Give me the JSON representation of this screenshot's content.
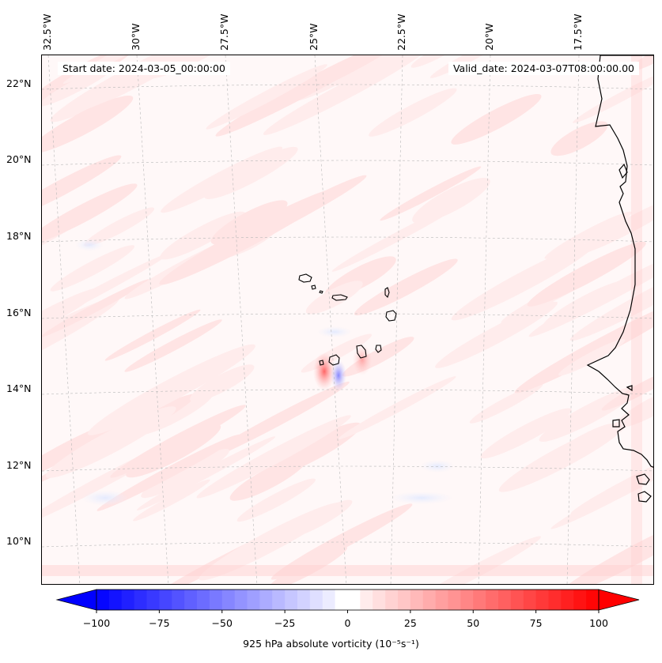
{
  "map": {
    "start_date": "Start date: 2024-03-05_00:00:00",
    "valid_date": "Valid_date: 2024-03-07T08:00:00.00",
    "lon_labels": [
      "32.5°W",
      "30°W",
      "27.5°W",
      "25°W",
      "22.5°W",
      "20°W",
      "17.5°W"
    ],
    "lat_labels": [
      "22°N",
      "20°N",
      "18°N",
      "16°N",
      "14°N",
      "12°N",
      "10°N"
    ],
    "field_colors": {
      "positive": "#ff0000",
      "negative": "#0000ff",
      "neutral": "#ffffff",
      "coastline": "#000000"
    }
  },
  "colorbar": {
    "min": -100,
    "max": 100,
    "ticks": [
      "−100",
      "−75",
      "−50",
      "−25",
      "0",
      "25",
      "50",
      "75",
      "100"
    ],
    "label": "925 hPa absolute vorticity (10⁻⁵s⁻¹)"
  }
}
